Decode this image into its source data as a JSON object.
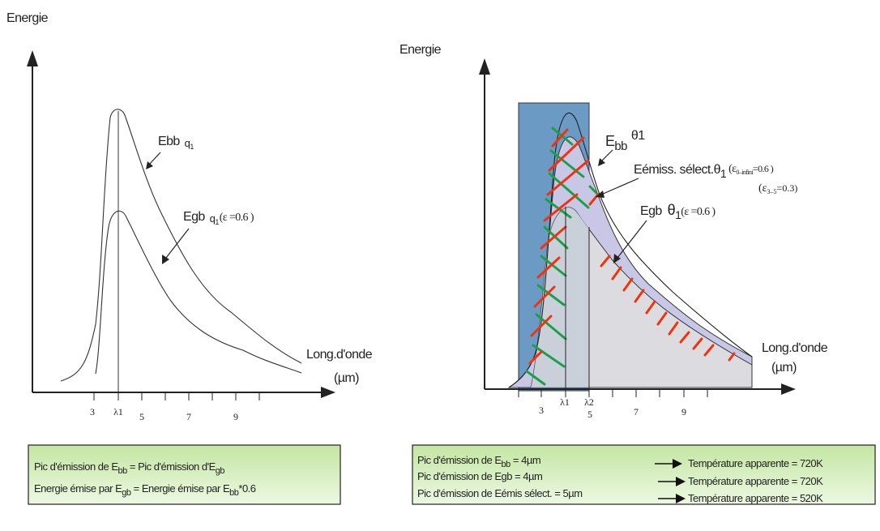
{
  "left_diagram": {
    "y_axis_label": "Energie",
    "x_axis_label_1": "Long.d'onde",
    "x_axis_label_2": "(µm)",
    "ticks": [
      "3",
      "λ1",
      "5",
      "7",
      "9"
    ],
    "curve_upper_label": "Ebb",
    "curve_upper_sub": "q",
    "curve_upper_subsub": "1",
    "curve_lower_label": "Egb",
    "curve_lower_sub": "q",
    "curve_lower_subsub": "1",
    "curve_lower_eps": "(ε =0.6 )"
  },
  "right_diagram": {
    "y_axis_label": "Energie",
    "x_axis_label_1": "Long.d'onde",
    "x_axis_label_2": "(µm)",
    "ticks": [
      "3",
      "λ1",
      "λ2",
      "5",
      "7",
      "9"
    ],
    "label_ebb": "E",
    "label_ebb_sub": "bb",
    "label_ebb_theta": "θ1",
    "label_select": "Eémiss. sélect.θ",
    "label_select_sub": "1",
    "label_select_eps1": "(ε",
    "label_select_eps1_sub": "0–infini",
    "label_select_eps1_val": "=0.6 )",
    "label_select_eps2": "(ε",
    "label_select_eps2_sub": "3–5",
    "label_select_eps2_val": "=0.3)",
    "label_egb": "Egb",
    "label_egb_theta": "θ",
    "label_egb_sub": "1",
    "label_egb_eps": "(ε =0.6 )"
  },
  "left_box": {
    "line1_a": "Pic d'émission de E",
    "line1_a_sub": "bb",
    "line1_b": " = Pic d'émission d'E",
    "line1_b_sub": "gb",
    "line2_a": "Energie émise par E",
    "line2_a_sub": "gb",
    "line2_b": " = Energie émise par E",
    "line2_b_sub": "bb",
    "line2_c": "*0.6"
  },
  "right_box": {
    "rows": [
      {
        "left_a": "Pic d'émission de E",
        "left_sub": "bb",
        "left_b": " =  4µm",
        "right": "Température apparente = 720K"
      },
      {
        "left_a": "Pic d'émission de Egb =  4µm",
        "left_sub": "",
        "left_b": "",
        "right": "Température apparente = 720K"
      },
      {
        "left_a": "Pic d'émission de Eémis sélect. =  5µm",
        "left_sub": "",
        "left_b": "",
        "right": "Température apparente = 520K"
      }
    ]
  },
  "colors": {
    "box_gradient_top": "#c8e8a8",
    "box_gradient_bottom": "#eaf7de",
    "band_fill": "#6b9ac4",
    "gray_fill": "#dcdce0",
    "lavender_fill": "#c8c8e6",
    "hatch_green": "#1f9e4a",
    "hatch_red": "#ee3311"
  }
}
